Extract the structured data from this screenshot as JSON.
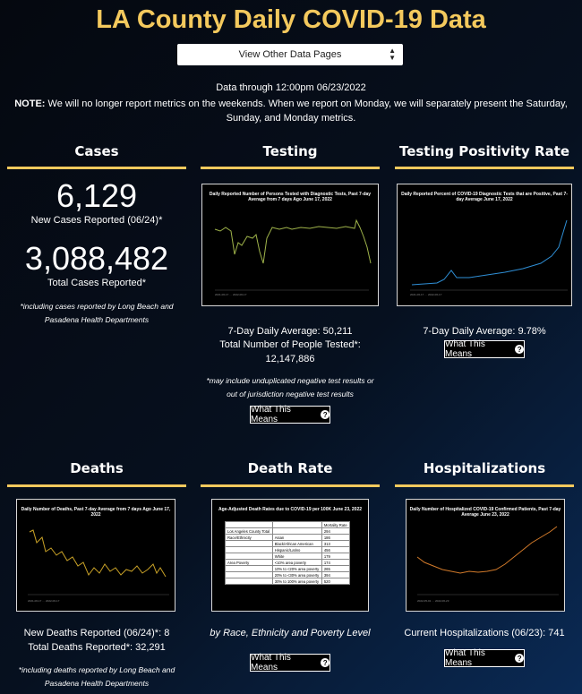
{
  "header": {
    "title": "LA County Daily COVID-19 Data",
    "select_label": "View Other Data Pages",
    "data_through": "Data through 12:00pm 06/23/2022",
    "note_label": "NOTE:",
    "note_text": "We will no longer report metrics on the weekends. When we report on Monday, we will separately present the Saturday, Sunday, and Monday metrics."
  },
  "cases": {
    "title": "Cases",
    "new_value": "6,129",
    "new_label": "New Cases Reported (06/24)*",
    "total_value": "3,088,482",
    "total_label": "Total Cases Reported*",
    "footnote": "*including cases reported by Long Beach and Pasadena Health Departments"
  },
  "testing": {
    "title": "Testing",
    "chart_title": "Daily Reported Number of Persons Tested with Diagnostic Tests, Past 7-day Average from 7 days Ago June 17, 2022",
    "avg": "7-Day Daily Average: 50,211",
    "total": "Total Number of People Tested*: 12,147,886",
    "footnote": "*may include unduplicated negative test results or out of jurisdiction negative test results",
    "button": "What This Means"
  },
  "positivity": {
    "title": "Testing Positivity Rate",
    "chart_title": "Daily Reported Percent of COVID-19 Diagnostic Tests that are Positive, Past 7-day Average June 17, 2022",
    "avg": "7-Day Daily Average: 9.78%",
    "button": "What This Means"
  },
  "deaths": {
    "title": "Deaths",
    "chart_title": "Daily Number of Deaths, Past 7-day Average from 7 days Ago June 17, 2022",
    "new": "New Deaths Reported (06/24)*: 8",
    "total": "Total Deaths Reported*: 32,291",
    "footnote": "*including deaths reported by Long Beach and Pasadena Health Departments"
  },
  "death_rate": {
    "title": "Death Rate",
    "chart_title": "Age-Adjusted Death Rates due to COVID-19 per 100K June 23, 2022",
    "caption": "by Race, Ethnicity and Poverty Level",
    "button": "What This Means",
    "table_header": [
      "",
      "",
      "Mortality Rate"
    ],
    "table_rows": [
      [
        "Los Angeles County Total",
        "",
        "294"
      ],
      [
        "Race/Ethnicity",
        "Asian",
        "186"
      ],
      [
        "",
        "Black/African American",
        "313"
      ],
      [
        "",
        "Hispanic/Latino",
        "456"
      ],
      [
        "",
        "White",
        "179"
      ],
      [
        "Area Poverty",
        "<10% area poverty",
        "174"
      ],
      [
        "",
        "10% to <20% area poverty",
        "265"
      ],
      [
        "",
        "20% to <30% area poverty",
        "394"
      ],
      [
        "",
        "30% to 100% area poverty",
        "520"
      ]
    ]
  },
  "hospitalizations": {
    "title": "Hospitalizations",
    "chart_title": "Daily Number of Hospitalized COVID-19 Confirmed Patients, Past 7-day Average June 23, 2022",
    "current": "Current Hospitalizations (06/23): 741",
    "button": "What This Means"
  },
  "colors": {
    "accent": "#f4c95d",
    "line_testing": "#9fb34a",
    "line_positivity": "#2f8fd6",
    "line_deaths": "#c9a227",
    "line_hosp": "#d27a2a"
  }
}
